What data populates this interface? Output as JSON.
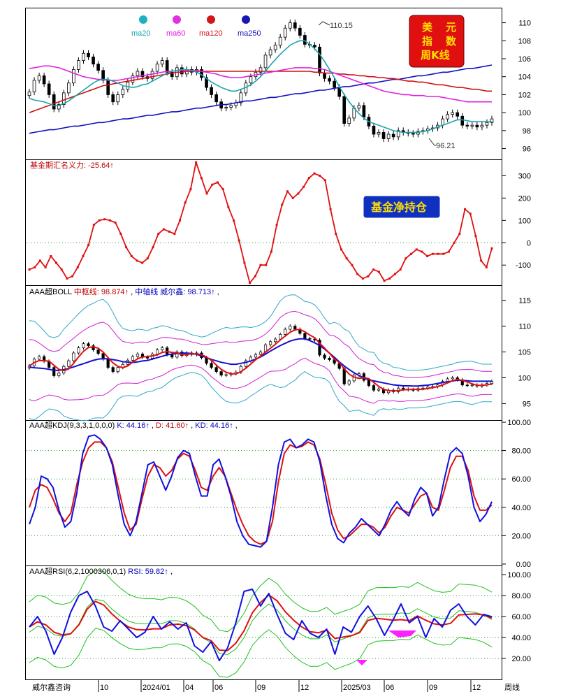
{
  "chart_data": {
    "type": "candlestick-multi-panel",
    "title": "美元指数周K线",
    "title_chars": [
      "美",
      "元",
      "指",
      "数",
      "周K线"
    ],
    "x_tick_labels": [
      "10",
      "2024/01",
      "04",
      "06",
      "09",
      "12",
      "2025/03",
      "06",
      "09",
      "12",
      "周线"
    ],
    "footer_label": "威尔鑫咨询",
    "panels": {
      "price": {
        "legend": [
          {
            "name": "ma20",
            "color": "#1aa3b0"
          },
          {
            "name": "ma60",
            "color": "#e020e0"
          },
          {
            "name": "ma120",
            "color": "#d01010"
          },
          {
            "name": "ma250",
            "color": "#1010c0"
          }
        ],
        "yticks": [
          "110",
          "108",
          "106",
          "104",
          "102",
          "100",
          "98",
          "96"
        ],
        "ylim": [
          94.8,
          111.6
        ],
        "high_annot": "110.15",
        "low_annot": "96.21",
        "closes": [
          102.3,
          103.6,
          104.1,
          103.2,
          102.0,
          100.4,
          100.9,
          102.2,
          103.3,
          104.8,
          105.8,
          106.6,
          106.2,
          105.4,
          104.7,
          103.6,
          102.0,
          101.2,
          102.0,
          102.6,
          103.4,
          104.1,
          104.6,
          104.0,
          103.8,
          104.6,
          105.4,
          105.8,
          104.5,
          104.0,
          105.0,
          104.3,
          104.8,
          104.5,
          104.8,
          103.9,
          102.8,
          102.0,
          101.2,
          100.5,
          100.6,
          100.8,
          101.1,
          102.2,
          103.3,
          104.0,
          104.5,
          105.0,
          106.4,
          107.0,
          107.5,
          108.4,
          109.4,
          110.0,
          109.4,
          108.6,
          107.6,
          107.5,
          107.3,
          104.4,
          103.8,
          103.5,
          102.8,
          101.8,
          98.8,
          99.4,
          100.5,
          100.8,
          99.5,
          98.5,
          97.6,
          97.8,
          97.1,
          97.6,
          97.3,
          98.0,
          97.8,
          97.7,
          97.6,
          97.9,
          98.0,
          98.2,
          98.3,
          98.6,
          99.3,
          99.8,
          100.0,
          99.6,
          98.6,
          98.5,
          98.6,
          98.4,
          98.6,
          98.9,
          99.3
        ],
        "ma20": [
          101.6,
          101.4,
          101.3,
          101.2,
          101.0,
          100.8,
          100.8,
          101.0,
          101.3,
          101.7,
          102.1,
          102.5,
          102.9,
          103.3,
          103.6,
          103.7,
          103.7,
          103.5,
          103.3,
          103.0,
          102.9,
          102.8,
          102.9,
          103.1,
          103.2,
          103.5,
          103.8,
          104.1,
          104.4,
          104.6,
          104.7,
          104.8,
          104.8,
          104.7,
          104.5,
          104.2,
          103.8,
          103.4,
          103.1,
          102.8,
          102.6,
          102.4,
          102.4,
          102.6,
          102.8,
          103.1,
          103.5,
          104.0,
          104.6,
          105.3,
          105.9,
          106.5,
          107.0,
          107.5,
          107.8,
          108.0,
          108.0,
          107.6,
          107.1,
          106.5,
          105.7,
          104.8,
          103.9,
          102.9,
          102.0,
          101.2,
          100.5,
          99.9,
          99.4,
          99.0,
          98.8,
          98.6,
          98.4,
          98.2,
          98.0,
          97.9,
          97.8,
          97.8,
          97.8,
          97.8,
          97.9,
          98.0,
          98.2,
          98.4,
          98.6,
          98.8,
          99.0,
          99.2,
          99.2,
          99.1,
          99.0,
          99.0,
          99.0,
          99.0,
          99.0
        ],
        "ma60": [
          104.9,
          105.0,
          105.1,
          105.2,
          105.2,
          105.1,
          105.0,
          104.8,
          104.6,
          104.4,
          104.2,
          104.0,
          103.9,
          103.8,
          103.7,
          103.7,
          103.6,
          103.6,
          103.6,
          103.7,
          103.8,
          103.9,
          104.0,
          104.1,
          104.2,
          104.3,
          104.4,
          104.5,
          104.6,
          104.6,
          104.7,
          104.7,
          104.7,
          104.7,
          104.7,
          104.6,
          104.5,
          104.4,
          104.3,
          104.1,
          104.0,
          103.9,
          103.9,
          103.9,
          104.0,
          104.1,
          104.2,
          104.3,
          104.4,
          104.5,
          104.6,
          104.7,
          104.8,
          104.9,
          105.0,
          105.0,
          105.0,
          105.0,
          104.9,
          104.9,
          104.8,
          104.6,
          104.4,
          104.2,
          104.0,
          103.8,
          103.6,
          103.4,
          103.2,
          103.0,
          102.8,
          102.6,
          102.4,
          102.3,
          102.2,
          102.1,
          102.0,
          102.0,
          101.9,
          101.9,
          101.9,
          101.8,
          101.8,
          101.8,
          101.7,
          101.6,
          101.5,
          101.4,
          101.3,
          101.2,
          101.2,
          101.2,
          101.2,
          101.2,
          101.2
        ],
        "ma120": [
          100.0,
          100.2,
          100.4,
          100.6,
          100.8,
          101.0,
          101.2,
          101.4,
          101.6,
          101.8,
          102.0,
          102.2,
          102.4,
          102.6,
          102.8,
          103.0,
          103.1,
          103.2,
          103.3,
          103.4,
          103.5,
          103.6,
          103.7,
          103.8,
          103.9,
          104.0,
          104.1,
          104.2,
          104.3,
          104.4,
          104.5,
          104.5,
          104.6,
          104.6,
          104.6,
          104.6,
          104.6,
          104.6,
          104.6,
          104.6,
          104.6,
          104.6,
          104.6,
          104.6,
          104.6,
          104.6,
          104.6,
          104.6,
          104.6,
          104.6,
          104.6,
          104.6,
          104.6,
          104.6,
          104.6,
          104.6,
          104.6,
          104.6,
          104.5,
          104.5,
          104.4,
          104.4,
          104.4,
          104.3,
          104.3,
          104.2,
          104.2,
          104.1,
          104.1,
          104.0,
          104.0,
          103.9,
          103.9,
          103.8,
          103.8,
          103.7,
          103.6,
          103.5,
          103.5,
          103.4,
          103.4,
          103.3,
          103.2,
          103.1,
          103.1,
          103.0,
          102.9,
          102.8,
          102.8,
          102.7,
          102.6,
          102.6,
          102.5,
          102.4,
          102.4
        ],
        "ma250": [
          97.7,
          97.8,
          97.9,
          98.0,
          98.1,
          98.1,
          98.2,
          98.3,
          98.4,
          98.5,
          98.5,
          98.6,
          98.7,
          98.8,
          98.9,
          98.9,
          99.0,
          99.1,
          99.2,
          99.3,
          99.3,
          99.4,
          99.5,
          99.6,
          99.7,
          99.7,
          99.8,
          99.9,
          100.0,
          100.1,
          100.1,
          100.2,
          100.3,
          100.4,
          100.5,
          100.5,
          100.6,
          100.7,
          100.8,
          100.9,
          100.9,
          101.0,
          101.1,
          101.2,
          101.3,
          101.3,
          101.4,
          101.5,
          101.6,
          101.7,
          101.7,
          101.8,
          101.9,
          102.0,
          102.1,
          102.1,
          102.2,
          102.3,
          102.4,
          102.5,
          102.5,
          102.6,
          102.7,
          102.8,
          102.9,
          102.9,
          103.0,
          103.1,
          103.2,
          103.3,
          103.3,
          103.4,
          103.5,
          103.6,
          103.7,
          103.7,
          103.8,
          103.9,
          104.0,
          104.1,
          104.1,
          104.2,
          104.3,
          104.4,
          104.5,
          104.5,
          104.6,
          104.7,
          104.8,
          104.9,
          104.9,
          105.0,
          105.1,
          105.2,
          105.3
        ]
      },
      "net_position": {
        "label": "基金期汇名义力: -25.64↑",
        "badge": "基金净持仓",
        "yticks": [
          "300",
          "200",
          "100",
          "0",
          "-100"
        ],
        "ylim": [
          -190,
          370
        ],
        "values": [
          -120,
          -110,
          -80,
          -110,
          -60,
          -90,
          -120,
          -160,
          -150,
          -110,
          -60,
          -10,
          80,
          100,
          105,
          100,
          90,
          40,
          -20,
          -60,
          -80,
          -90,
          -70,
          -20,
          40,
          60,
          50,
          40,
          100,
          180,
          240,
          360,
          290,
          220,
          260,
          270,
          240,
          160,
          100,
          10,
          -90,
          -180,
          -150,
          -100,
          -100,
          -40,
          80,
          170,
          230,
          200,
          220,
          250,
          290,
          310,
          300,
          280,
          150,
          40,
          -30,
          -70,
          -100,
          -140,
          -160,
          -150,
          -120,
          -130,
          -170,
          -160,
          -140,
          -120,
          -70,
          -50,
          -30,
          -40,
          -60,
          -50,
          -50,
          -50,
          -40,
          0,
          40,
          150,
          130,
          30,
          -80,
          -110,
          -25
        ]
      },
      "boll": {
        "label": "AAA超BOLL",
        "mid_label": "中枢线: 98.874↑",
        "axis_label": "中轴线 威尔鑫: 98.713↑",
        "yticks": [
          "115",
          "110",
          "105",
          "100",
          "95"
        ],
        "ylim": [
          91.8,
          117.8
        ]
      },
      "kdj": {
        "label": "AAA超KDJ(9,3,3,1,0,0,0)",
        "k_label": "K: 44.16↑",
        "d_label": "D: 41.60↑",
        "kd_label": "KD: 44.16↑",
        "yticks": [
          "100.00",
          "80.00",
          "60.00",
          "40.00",
          "20.00",
          "0.00"
        ],
        "ylim": [
          -1,
          101
        ],
        "K": [
          28,
          40,
          62,
          60,
          54,
          38,
          26,
          30,
          50,
          78,
          90,
          91,
          88,
          82,
          70,
          48,
          28,
          20,
          30,
          50,
          70,
          72,
          62,
          52,
          62,
          75,
          80,
          78,
          62,
          48,
          48,
          70,
          74,
          62,
          48,
          30,
          20,
          14,
          13,
          12,
          16,
          40,
          70,
          86,
          88,
          82,
          84,
          88,
          86,
          72,
          48,
          28,
          18,
          15,
          22,
          26,
          32,
          28,
          24,
          20,
          28,
          38,
          44,
          38,
          34,
          46,
          54,
          50,
          34,
          40,
          60,
          78,
          82,
          78,
          62,
          40,
          30,
          35,
          44
        ],
        "D": [
          40,
          52,
          56,
          54,
          46,
          36,
          30,
          36,
          56,
          72,
          82,
          86,
          86,
          82,
          72,
          54,
          36,
          24,
          28,
          46,
          62,
          70,
          68,
          62,
          66,
          74,
          78,
          76,
          66,
          54,
          52,
          62,
          68,
          62,
          50,
          38,
          28,
          20,
          16,
          14,
          16,
          30,
          58,
          78,
          84,
          82,
          83,
          86,
          84,
          74,
          56,
          36,
          24,
          18,
          20,
          24,
          28,
          28,
          26,
          22,
          26,
          34,
          40,
          38,
          36,
          42,
          48,
          50,
          40,
          38,
          52,
          68,
          76,
          76,
          66,
          48,
          38,
          38,
          41.6
        ]
      },
      "rsi": {
        "label": "AAA超RSI(6,2,1000306,0,1)",
        "rsi_label": "RSI: 59.82↑",
        "yticks": [
          "100.00",
          "80.00",
          "60.00",
          "40.00",
          "20.00"
        ],
        "ylim": [
          0,
          108
        ],
        "values": [
          50,
          60,
          46,
          24,
          40,
          64,
          80,
          84,
          70,
          50,
          46,
          56,
          48,
          40,
          45,
          60,
          48,
          55,
          48,
          54,
          32,
          26,
          36,
          18,
          30,
          54,
          84,
          86,
          70,
          82,
          62,
          44,
          38,
          56,
          44,
          40,
          48,
          24,
          50,
          45,
          60,
          70,
          58,
          42,
          56,
          72,
          54,
          60,
          40,
          58,
          50,
          66,
          72,
          60,
          52,
          62,
          59.8
        ]
      }
    }
  }
}
